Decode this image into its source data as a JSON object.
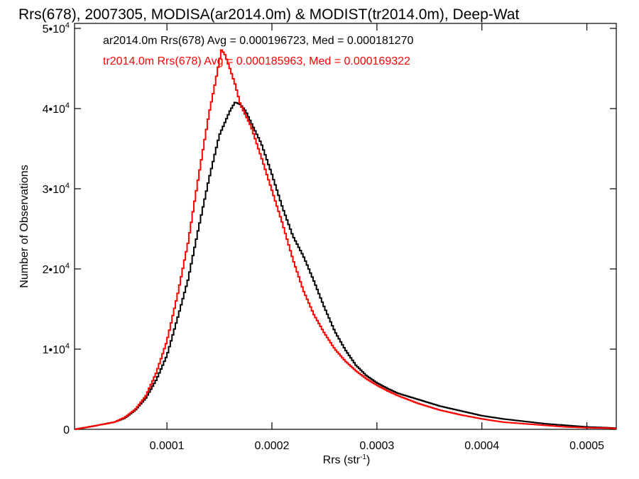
{
  "chart_data": {
    "type": "line",
    "title": "Rrs(678), 2007305, MODISA(ar2014.0m) & MODIST(tr2014.0m), Deep-Wat",
    "xlabel_base": "Rrs (str",
    "xlabel_sup": "-1",
    "xlabel_close": ")",
    "ylabel": "Number of Observations",
    "xlim": [
      1.2e-05,
      0.000528
    ],
    "ylim": [
      0,
      50000
    ],
    "x_ticks": [
      {
        "value": 0.0001,
        "label": "0.0001"
      },
      {
        "value": 0.0002,
        "label": "0.0002"
      },
      {
        "value": 0.0003,
        "label": "0.0003"
      },
      {
        "value": 0.0004,
        "label": "0.0004"
      },
      {
        "value": 0.0005,
        "label": "0.0005"
      }
    ],
    "y_ticks": [
      {
        "value": 0,
        "base": "0",
        "exp": ""
      },
      {
        "value": 10000,
        "base": "1•10",
        "exp": "4"
      },
      {
        "value": 20000,
        "base": "2•10",
        "exp": "4"
      },
      {
        "value": 30000,
        "base": "3•10",
        "exp": "4"
      },
      {
        "value": 40000,
        "base": "4•10",
        "exp": "4"
      },
      {
        "value": 50000,
        "base": "5•10",
        "exp": "4"
      }
    ],
    "grid": false,
    "series": [
      {
        "name": "ar2014.0m Rrs(678)",
        "legend": "ar2014.0m Rrs(678) Avg = 0.000196723, Med = 0.000181270",
        "color": "#000000",
        "points": [
          [
            1.2e-05,
            0
          ],
          [
            3e-05,
            400
          ],
          [
            5e-05,
            900
          ],
          [
            6e-05,
            1400
          ],
          [
            7e-05,
            2400
          ],
          [
            8e-05,
            3900
          ],
          [
            9e-05,
            6200
          ],
          [
            0.0001,
            9200
          ],
          [
            0.00011,
            13800
          ],
          [
            0.00012,
            18600
          ],
          [
            0.00013,
            25000
          ],
          [
            0.00014,
            31200
          ],
          [
            0.00015,
            36700
          ],
          [
            0.00016,
            39700
          ],
          [
            0.000165,
            40800
          ],
          [
            0.00017,
            40500
          ],
          [
            0.000175,
            39700
          ],
          [
            0.00018,
            38300
          ],
          [
            0.00019,
            35600
          ],
          [
            0.0002,
            31800
          ],
          [
            0.00021,
            27700
          ],
          [
            0.00022,
            24100
          ],
          [
            0.00023,
            21600
          ],
          [
            0.00024,
            18500
          ],
          [
            0.00025,
            15200
          ],
          [
            0.00026,
            12200
          ],
          [
            0.00027,
            9900
          ],
          [
            0.00028,
            8000
          ],
          [
            0.00029,
            6700
          ],
          [
            0.0003,
            5800
          ],
          [
            0.00031,
            5100
          ],
          [
            0.00032,
            4500
          ],
          [
            0.00034,
            3700
          ],
          [
            0.00036,
            2900
          ],
          [
            0.00038,
            2300
          ],
          [
            0.0004,
            1700
          ],
          [
            0.00042,
            1300
          ],
          [
            0.00044,
            1000
          ],
          [
            0.00046,
            700
          ],
          [
            0.00048,
            500
          ],
          [
            0.0005,
            300
          ],
          [
            0.00052,
            200
          ],
          [
            0.000528,
            150
          ]
        ]
      },
      {
        "name": "tr2014.0m Rrs(678)",
        "legend": "tr2014.0m Rrs(678) Avg = 0.000185963, Med = 0.000169322",
        "color": "#ff0000",
        "points": [
          [
            1.2e-05,
            0
          ],
          [
            3e-05,
            400
          ],
          [
            5e-05,
            900
          ],
          [
            6e-05,
            1500
          ],
          [
            7e-05,
            2500
          ],
          [
            8e-05,
            4200
          ],
          [
            9e-05,
            7100
          ],
          [
            0.0001,
            11000
          ],
          [
            0.00011,
            16700
          ],
          [
            0.00012,
            23200
          ],
          [
            0.00013,
            31400
          ],
          [
            0.00014,
            39300
          ],
          [
            0.000145,
            42500
          ],
          [
            0.00015,
            46000
          ],
          [
            0.000152,
            47300
          ],
          [
            0.000155,
            46800
          ],
          [
            0.00016,
            45000
          ],
          [
            0.000165,
            43000
          ],
          [
            0.00017,
            40500
          ],
          [
            0.00018,
            37800
          ],
          [
            0.00019,
            33900
          ],
          [
            0.0002,
            29800
          ],
          [
            0.00021,
            25700
          ],
          [
            0.00022,
            21200
          ],
          [
            0.00023,
            17300
          ],
          [
            0.00024,
            14300
          ],
          [
            0.00025,
            12000
          ],
          [
            0.00026,
            10000
          ],
          [
            0.00027,
            8500
          ],
          [
            0.00028,
            7300
          ],
          [
            0.00029,
            6300
          ],
          [
            0.0003,
            5500
          ],
          [
            0.00031,
            4800
          ],
          [
            0.00032,
            4200
          ],
          [
            0.00034,
            3200
          ],
          [
            0.00036,
            2400
          ],
          [
            0.00038,
            1800
          ],
          [
            0.0004,
            1300
          ],
          [
            0.00042,
            900
          ],
          [
            0.00044,
            700
          ],
          [
            0.00046,
            500
          ],
          [
            0.00048,
            300
          ],
          [
            0.0005,
            200
          ],
          [
            0.00052,
            150
          ],
          [
            0.000528,
            100
          ]
        ]
      }
    ]
  }
}
